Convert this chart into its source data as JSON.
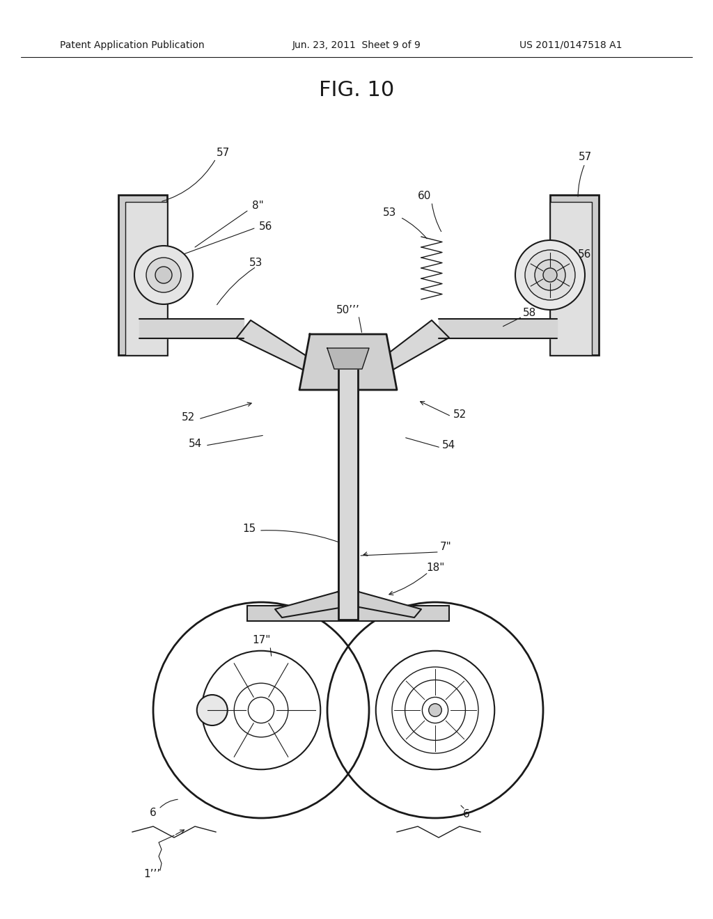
{
  "title": "FIG. 10",
  "header_left": "Patent Application Publication",
  "header_center": "Jun. 23, 2011  Sheet 9 of 9",
  "header_right": "US 2011/0147518 A1",
  "bg_color": "#ffffff",
  "line_color": "#1a1a1a",
  "labels": {
    "57_left_top": "57",
    "8pp": "8\"",
    "56_left": "56",
    "53_left": "53",
    "57_right_top": "57",
    "60": "60",
    "53_right": "53",
    "50ppp": "50’’’",
    "56_right": "56",
    "58": "58",
    "52_left": "52",
    "54_left": "54",
    "52_right": "52",
    "54_right": "54",
    "15": "15",
    "7pp": "7\"",
    "18pp": "18\"",
    "17pp": "17\"",
    "6_left": "6",
    "6_right": "6",
    "1ppp": "1’’’"
  },
  "label_fontsize": 11,
  "header_fontsize": 10,
  "title_fontsize": 22
}
